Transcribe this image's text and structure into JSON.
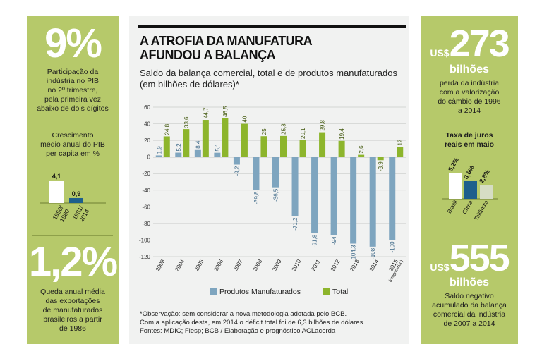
{
  "left": {
    "stat1_value": "9%",
    "stat1_text": [
      "Participação da",
      "indústria no PIB",
      "no 2º trimestre,",
      "pela primeira vez",
      "abaixo de dois dígitos"
    ],
    "mini_title": [
      "Crescimento",
      "médio anual do PIB",
      "per capita em %"
    ],
    "mini_bars": [
      {
        "label": [
          "1950/",
          "1980"
        ],
        "value": 4.1,
        "value_label": "4,1",
        "color": "#ffffff"
      },
      {
        "label": [
          "1981/",
          "2014"
        ],
        "value": 0.9,
        "value_label": "0,9",
        "color": "#1e5f8c"
      }
    ],
    "stat2_value": "1,2%",
    "stat2_text": [
      "Queda anual média",
      "das exportações",
      "de manufaturados",
      "brasileiros a partir",
      "de 1986"
    ]
  },
  "right": {
    "stat1_currency": "US$",
    "stat1_value": "273",
    "stat1_unit": "bilhões",
    "stat1_text": [
      "perda da indústria",
      "com a valorização",
      "do câmbio de 1996",
      "a 2014"
    ],
    "mini_title": [
      "Taxa de juros",
      "reais em maio"
    ],
    "mini_bars": [
      {
        "label": "Brasil",
        "value": 5.2,
        "value_label": "5,2%",
        "color": "#ffffff"
      },
      {
        "label": "China",
        "value": 3.6,
        "value_label": "3,6%",
        "color": "#1e5f8c"
      },
      {
        "label": "Tailândia",
        "value": 2.8,
        "value_label": "2,8%",
        "color": "#d6ddc4"
      }
    ],
    "stat2_currency": "US$",
    "stat2_value": "555",
    "stat2_unit": "bilhões",
    "stat2_text": [
      "Saldo negativo",
      "acumulado da balança",
      "comercial da indústria",
      "de 2007 a 2014"
    ]
  },
  "center": {
    "title_line1": "A ATROFIA DA MANUFATURA",
    "title_line2": "AFUNDOU A BALANÇA",
    "subtitle": "Saldo da balança comercial, total e de produtos manufaturados (em bilhões de dólares)*",
    "footnote": [
      "*Observação: sem considerar a nova metodologia adotada pelo BCB.",
      "Com a aplicação desta, em 2014 o déficit total foi de  6,3 bilhões de dólares.",
      "Fontes: MDIC; Fiesp; BCB / Elaboração e prognóstico ACLacerda"
    ]
  },
  "colors": {
    "panel": "#b6c96a",
    "manufaturados": "#7ea5bf",
    "total": "#8db52c",
    "center_bg": "#f1f2f1"
  },
  "chart_data": {
    "type": "bar",
    "categories": [
      "2003",
      "2004",
      "2005",
      "2006",
      "2007",
      "2008",
      "2009",
      "2010",
      "2011",
      "2012",
      "2013",
      "2014",
      "2015"
    ],
    "category_sublabels": {
      "2015": "(prognóstico)"
    },
    "ylim": [
      -120,
      60
    ],
    "yticks": [
      60,
      40,
      20,
      0,
      -20,
      -40,
      -60,
      -80,
      -100,
      -120
    ],
    "grid": true,
    "legend_position": "bottom",
    "series": [
      {
        "name": "Produtos Manufaturados",
        "values": [
          1.9,
          5.2,
          8.4,
          5.1,
          -9.2,
          -39.8,
          -36.5,
          -71.2,
          -91.8,
          -94,
          -104.3,
          -108,
          -100
        ],
        "labels": [
          "1,9",
          "5,2",
          "8,4",
          "5,1",
          "-9,2",
          "-39,8",
          "-36,5",
          "-71,2",
          "-91,8",
          "-94",
          "-104,3",
          "-108",
          "-100"
        ]
      },
      {
        "name": "Total",
        "values": [
          24.8,
          33.6,
          44.7,
          46.5,
          40,
          25,
          25.3,
          20.1,
          29.8,
          19.4,
          2.6,
          -3.9,
          12
        ],
        "labels": [
          "24,8",
          "33,6",
          "44,7",
          "46,5",
          "40",
          "25",
          "25,3",
          "20,1",
          "29,8",
          "19,4",
          "2,6",
          "-3,9",
          "12"
        ]
      }
    ]
  }
}
